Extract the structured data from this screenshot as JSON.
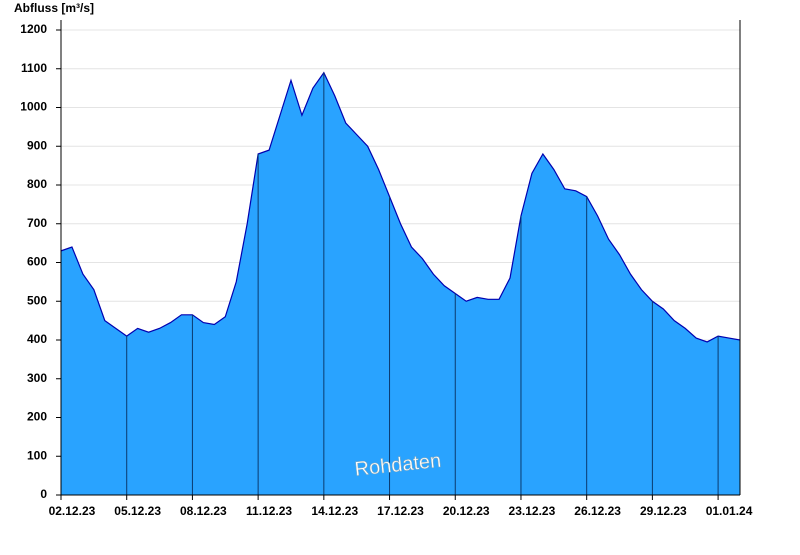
{
  "chart_data": {
    "type": "area",
    "title": "Abfluss [m³/s]",
    "watermark": "Rohdaten",
    "categories": [
      "02.12.23",
      null,
      null,
      null,
      null,
      null,
      "05.12.23",
      null,
      null,
      null,
      null,
      null,
      "08.12.23",
      null,
      null,
      null,
      null,
      null,
      "11.12.23",
      null,
      null,
      null,
      null,
      null,
      "14.12.23",
      null,
      null,
      null,
      null,
      null,
      "17.12.23",
      null,
      null,
      null,
      null,
      null,
      "20.12.23",
      null,
      null,
      null,
      null,
      null,
      "23.12.23",
      null,
      null,
      null,
      null,
      null,
      "26.12.23",
      null,
      null,
      null,
      null,
      null,
      "29.12.23",
      null,
      null,
      null,
      null,
      null,
      "01.01.24",
      null,
      null
    ],
    "values": [
      630,
      640,
      570,
      530,
      450,
      430,
      410,
      430,
      420,
      430,
      445,
      465,
      465,
      445,
      440,
      460,
      550,
      700,
      880,
      890,
      980,
      1070,
      980,
      1050,
      1090,
      1030,
      960,
      930,
      900,
      840,
      770,
      700,
      640,
      610,
      570,
      540,
      520,
      500,
      510,
      505,
      505,
      560,
      720,
      830,
      880,
      840,
      790,
      785,
      770,
      720,
      660,
      620,
      570,
      530,
      500,
      480,
      450,
      430,
      405,
      395,
      410,
      405,
      400
    ],
    "color": "#29a3ff",
    "line_color": "#0000b0",
    "ylim": [
      0,
      1200
    ],
    "yticks": [
      0,
      100,
      200,
      300,
      400,
      500,
      600,
      700,
      800,
      900,
      1000,
      1100,
      1200
    ],
    "grid": true
  }
}
